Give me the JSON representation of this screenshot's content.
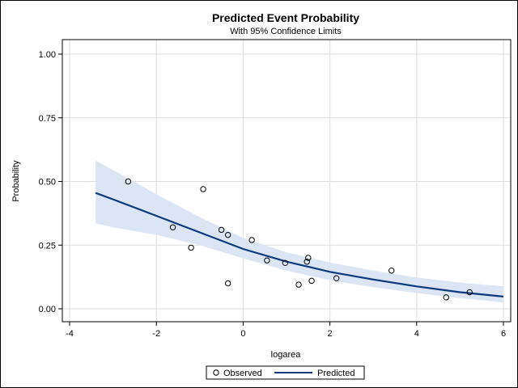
{
  "chart_data": {
    "type": "line",
    "title": "Predicted Event Probability",
    "subtitle": "With 95% Confidence Limits",
    "xlabel": "logarea",
    "ylabel": "Probability",
    "xlim": [
      -4,
      6
    ],
    "ylim": [
      0,
      1
    ],
    "xticks": [
      -4,
      -2,
      0,
      2,
      4,
      6
    ],
    "yticks": [
      0,
      0.25,
      0.5,
      0.75,
      1
    ],
    "ytick_labels": [
      "0.00",
      "0.25",
      "0.50",
      "0.75",
      "1.00"
    ],
    "grid": true,
    "legend": {
      "position": "bottom",
      "entries": [
        "Observed",
        "Predicted"
      ]
    },
    "colors": {
      "predicted": "#0b3a7e",
      "band": "#dbe5f3",
      "marker": "#000000",
      "grid": "#dedede"
    },
    "series": [
      {
        "name": "Observed",
        "type": "scatter",
        "points": [
          {
            "x": -2.65,
            "y": 0.5
          },
          {
            "x": -1.62,
            "y": 0.32
          },
          {
            "x": -1.2,
            "y": 0.24
          },
          {
            "x": -0.92,
            "y": 0.47
          },
          {
            "x": -0.5,
            "y": 0.31
          },
          {
            "x": -0.35,
            "y": 0.29
          },
          {
            "x": -0.35,
            "y": 0.1
          },
          {
            "x": 0.2,
            "y": 0.27
          },
          {
            "x": 0.55,
            "y": 0.19
          },
          {
            "x": 0.97,
            "y": 0.18
          },
          {
            "x": 1.28,
            "y": 0.095
          },
          {
            "x": 1.47,
            "y": 0.185
          },
          {
            "x": 1.5,
            "y": 0.2
          },
          {
            "x": 1.58,
            "y": 0.11
          },
          {
            "x": 2.15,
            "y": 0.12
          },
          {
            "x": 3.42,
            "y": 0.15
          },
          {
            "x": 4.68,
            "y": 0.045
          },
          {
            "x": 5.22,
            "y": 0.065
          }
        ]
      },
      {
        "name": "Predicted",
        "type": "line",
        "points": [
          {
            "x": -3.4,
            "y": 0.455
          },
          {
            "x": -3.0,
            "y": 0.43
          },
          {
            "x": -2.0,
            "y": 0.365
          },
          {
            "x": -1.0,
            "y": 0.3
          },
          {
            "x": 0.0,
            "y": 0.235
          },
          {
            "x": 1.0,
            "y": 0.185
          },
          {
            "x": 2.0,
            "y": 0.145
          },
          {
            "x": 3.0,
            "y": 0.115
          },
          {
            "x": 4.0,
            "y": 0.088
          },
          {
            "x": 5.0,
            "y": 0.065
          },
          {
            "x": 6.0,
            "y": 0.048
          }
        ]
      }
    ],
    "confidence_band": {
      "name": "95% Confidence Limits",
      "x": [
        -3.4,
        -3.0,
        -2.0,
        -1.0,
        0.0,
        1.0,
        2.0,
        3.0,
        4.0,
        5.0,
        6.0
      ],
      "lower": [
        0.335,
        0.32,
        0.29,
        0.25,
        0.198,
        0.15,
        0.112,
        0.085,
        0.062,
        0.042,
        0.025
      ],
      "upper": [
        0.582,
        0.545,
        0.45,
        0.36,
        0.278,
        0.222,
        0.182,
        0.15,
        0.123,
        0.103,
        0.088
      ]
    }
  }
}
